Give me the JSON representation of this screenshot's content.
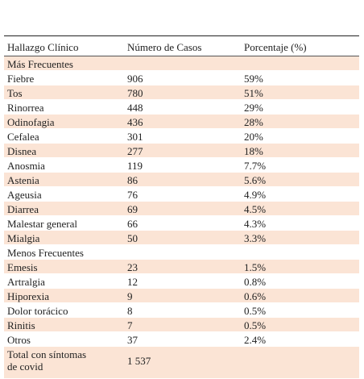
{
  "table": {
    "header": [
      "Hallazgo Clínico",
      "Número de Casos",
      "Porcentaje (%)"
    ],
    "rows": [
      [
        "Más Frecuentes"
      ],
      [
        "Fiebre",
        "906",
        "59%"
      ],
      [
        "Tos",
        "780",
        "51%"
      ],
      [
        "Rinorrea",
        "448",
        "29%"
      ],
      [
        "Odinofagia",
        "436",
        "28%"
      ],
      [
        "Cefalea",
        "301",
        "20%"
      ],
      [
        "Disnea",
        "277",
        "18%"
      ],
      [
        "Anosmia",
        "119",
        "7.7%"
      ],
      [
        "Astenia",
        "86",
        "5.6%"
      ],
      [
        "Ageusia",
        "76",
        "4.9%"
      ],
      [
        "Diarrea",
        "69",
        "4.5%"
      ],
      [
        "Malestar general",
        "66",
        "4.3%"
      ],
      [
        "Mialgia",
        "50",
        "3.3%"
      ],
      [
        "Menos Frecuentes"
      ],
      [
        "Emesis",
        "23",
        "1.5%"
      ],
      [
        "Artralgia",
        "12",
        "0.8%"
      ],
      [
        "Hiporexia",
        "9",
        "0.6%"
      ],
      [
        "Dolor torácico",
        "8",
        "0.5%"
      ],
      [
        "Rinitis",
        "7",
        "0.5%"
      ],
      [
        "Otros",
        "37",
        "2.4%"
      ],
      [
        "Total con síntomas de covid",
        "1 537"
      ]
    ]
  }
}
